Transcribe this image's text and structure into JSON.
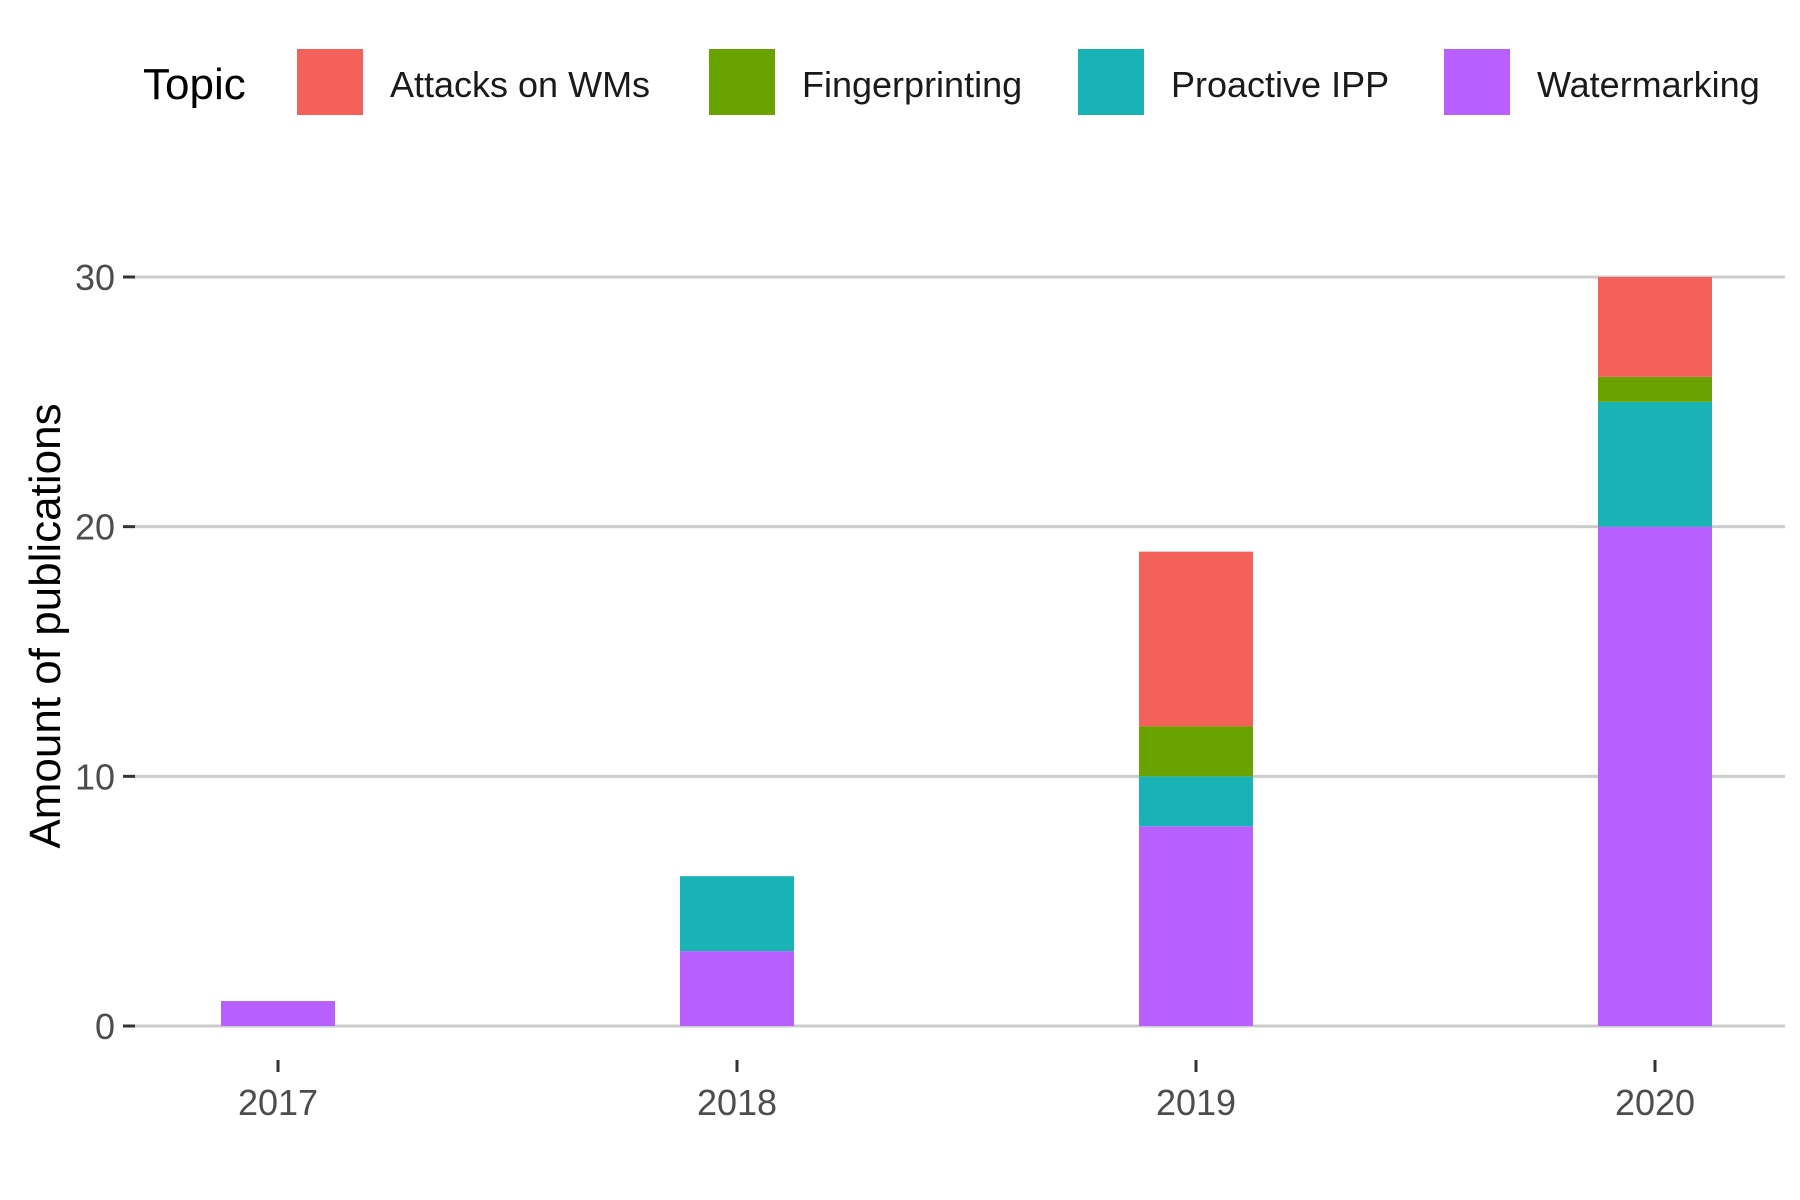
{
  "chart_data": {
    "type": "bar",
    "stacked": true,
    "categories": [
      "2017",
      "2018",
      "2019",
      "2020"
    ],
    "series": [
      {
        "name": "Watermarking",
        "color": "#B75FFF",
        "values": [
          1,
          3,
          8,
          20
        ]
      },
      {
        "name": "Proactive IPP",
        "color": "#19B3B6",
        "values": [
          0,
          3,
          2,
          5
        ]
      },
      {
        "name": "Fingerprinting",
        "color": "#6AA300",
        "values": [
          0,
          0,
          2,
          1
        ]
      },
      {
        "name": "Attacks on WMs",
        "color": "#F4605A",
        "values": [
          0,
          0,
          7,
          4
        ]
      }
    ],
    "legend": {
      "title": "Topic",
      "position": "top",
      "order": [
        "Attacks on WMs",
        "Fingerprinting",
        "Proactive IPP",
        "Watermarking"
      ]
    },
    "ylabel": "Amount of publications",
    "xlabel": "",
    "ylim": [
      0,
      30
    ],
    "yticks": [
      0,
      10,
      20,
      30
    ],
    "grid": "horizontal major"
  }
}
